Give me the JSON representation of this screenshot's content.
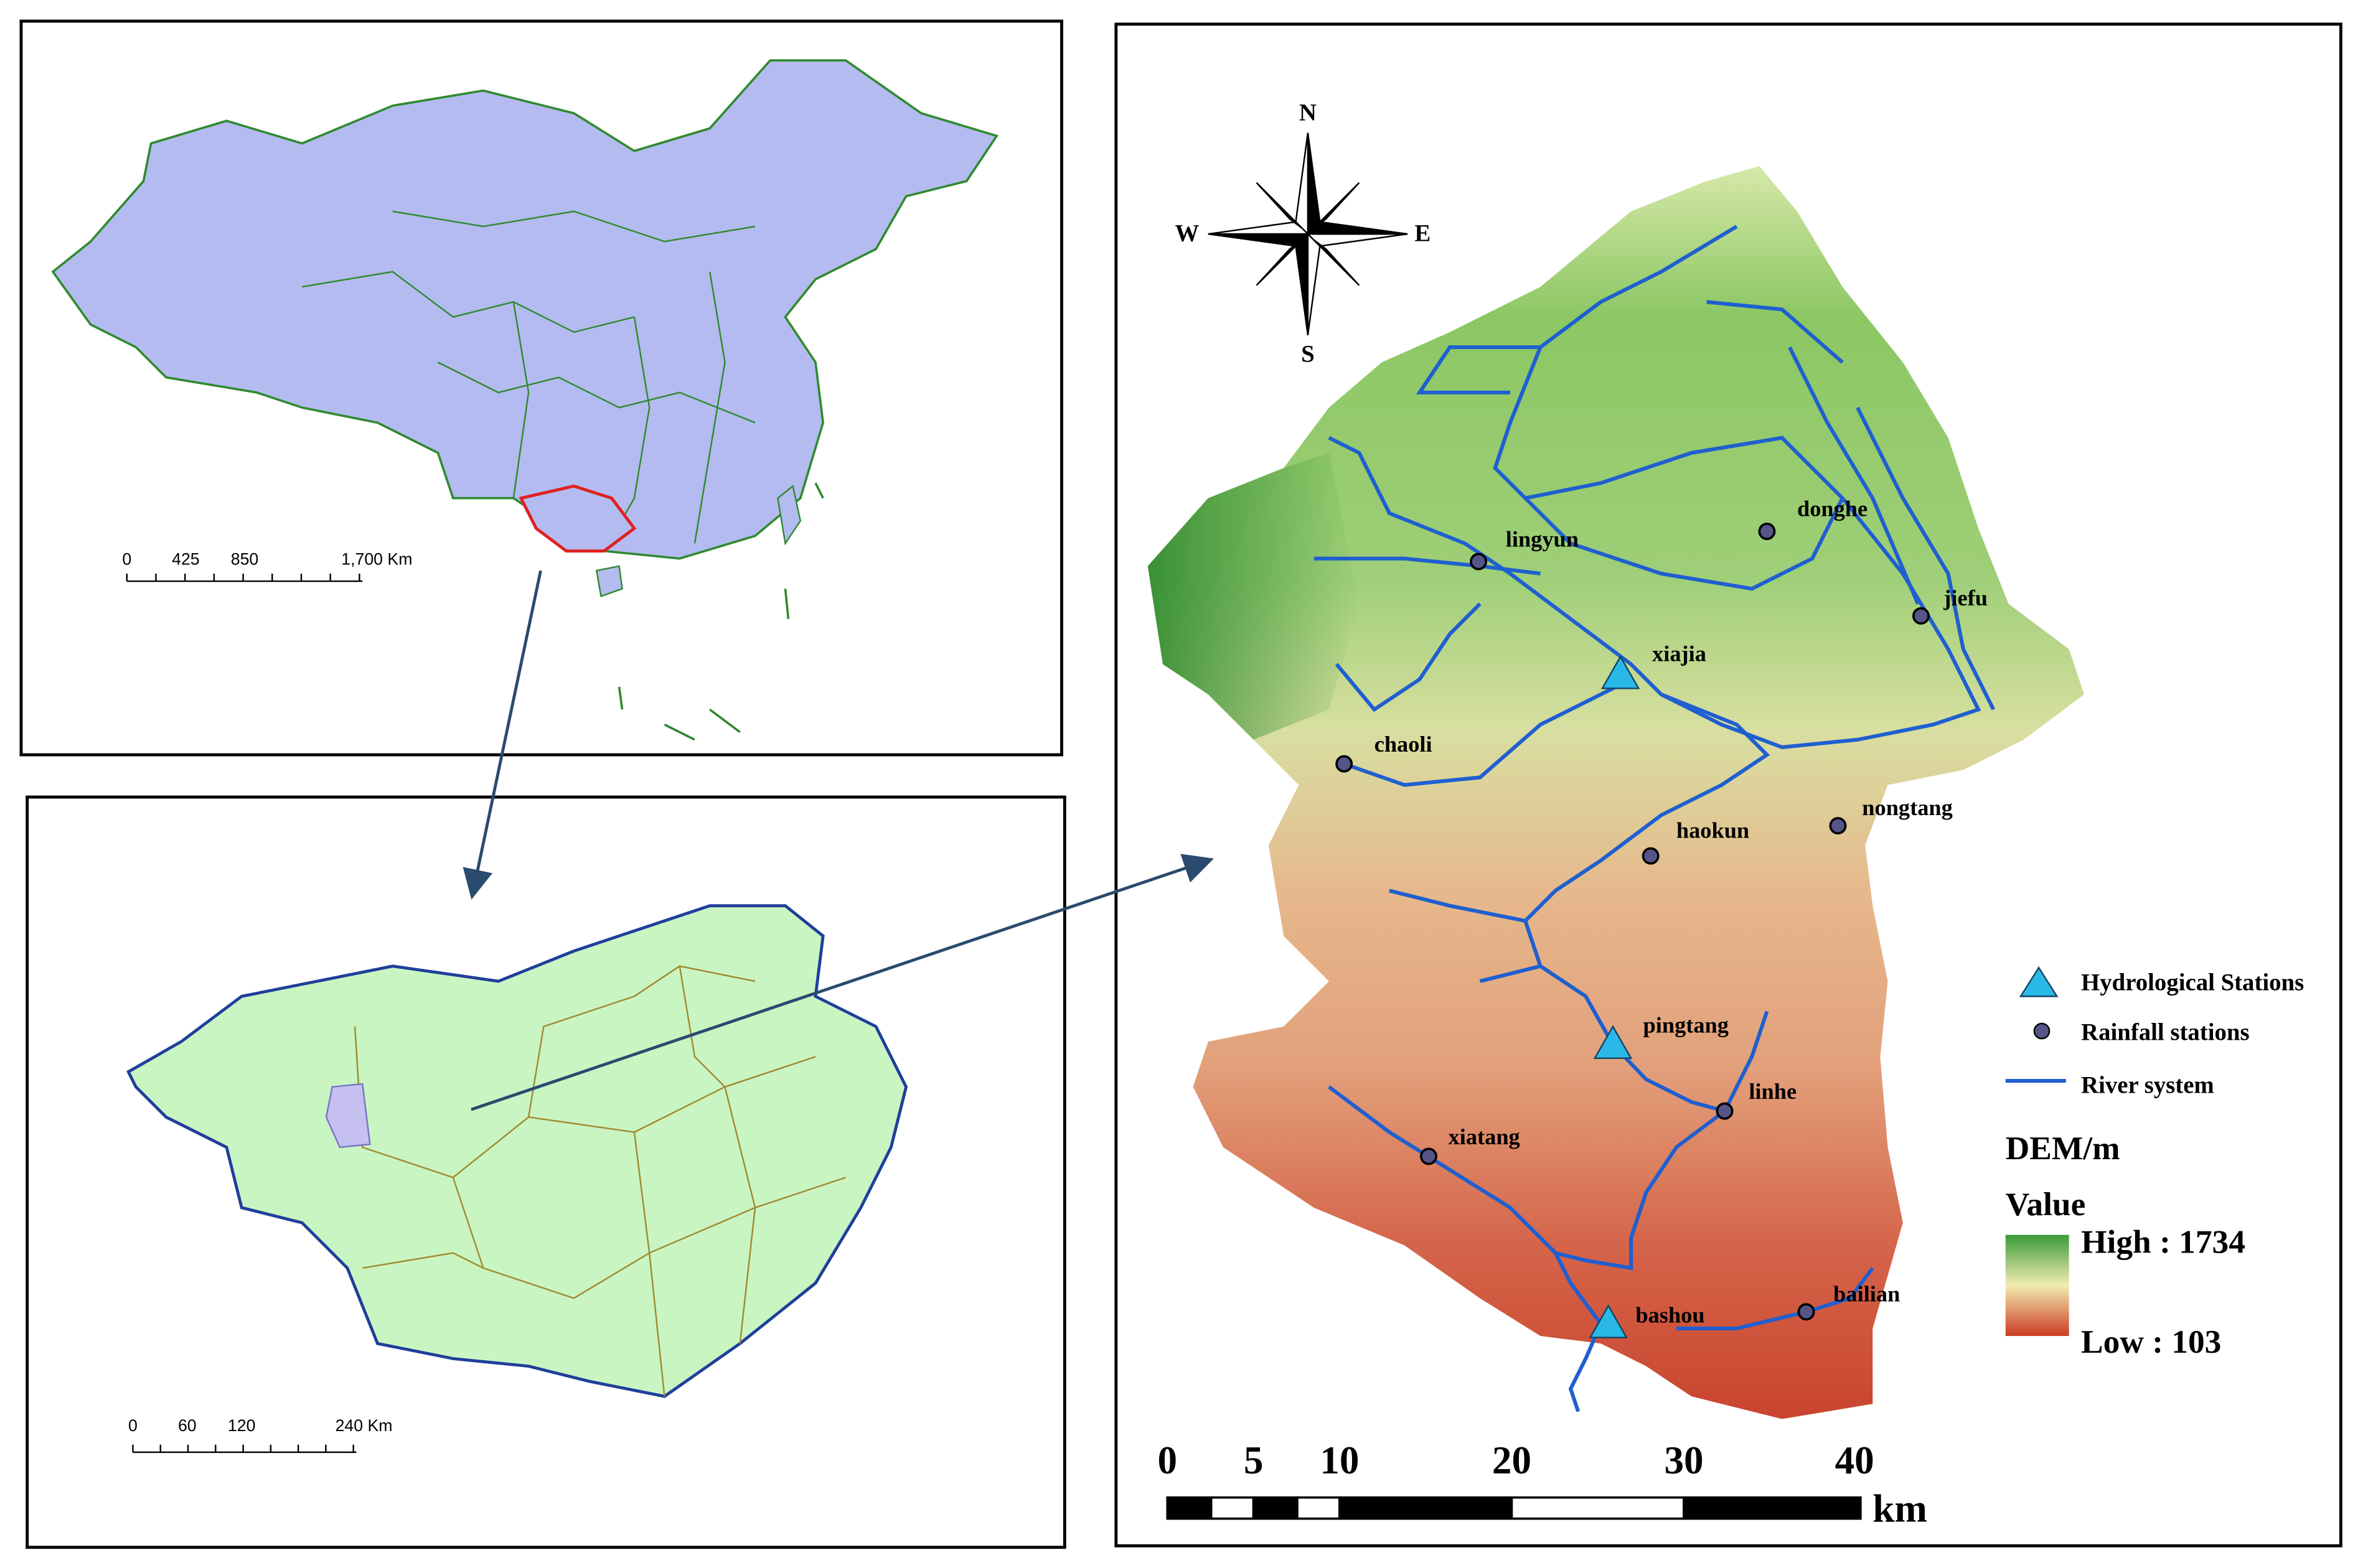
{
  "china_map": {
    "scale_labels": [
      "0",
      "425",
      "850",
      "1,700 Km"
    ]
  },
  "guangxi_map": {
    "scale_labels": [
      "0",
      "60",
      "120",
      "240 Km"
    ]
  },
  "dem_map": {
    "compass": {
      "north": "N",
      "east": "E",
      "south": "S",
      "west": "W"
    },
    "hydrological_stations": [
      "xiajia",
      "pingtang",
      "bashou"
    ],
    "rainfall_stations": [
      "lingyun",
      "donghe",
      "jiefu",
      "chaoli",
      "haokun",
      "nongtang",
      "linhe",
      "xiatang",
      "bailian"
    ],
    "legend": {
      "hydrological": "Hydrological Stations",
      "rainfall": "Rainfall stations",
      "river": "River system",
      "dem_title": "DEM/m",
      "value_title": "Value",
      "high": "High : 1734",
      "low": "Low : 103"
    },
    "scale_labels": [
      "0",
      "5",
      "10",
      "20",
      "30",
      "40"
    ],
    "scale_unit": "km"
  }
}
